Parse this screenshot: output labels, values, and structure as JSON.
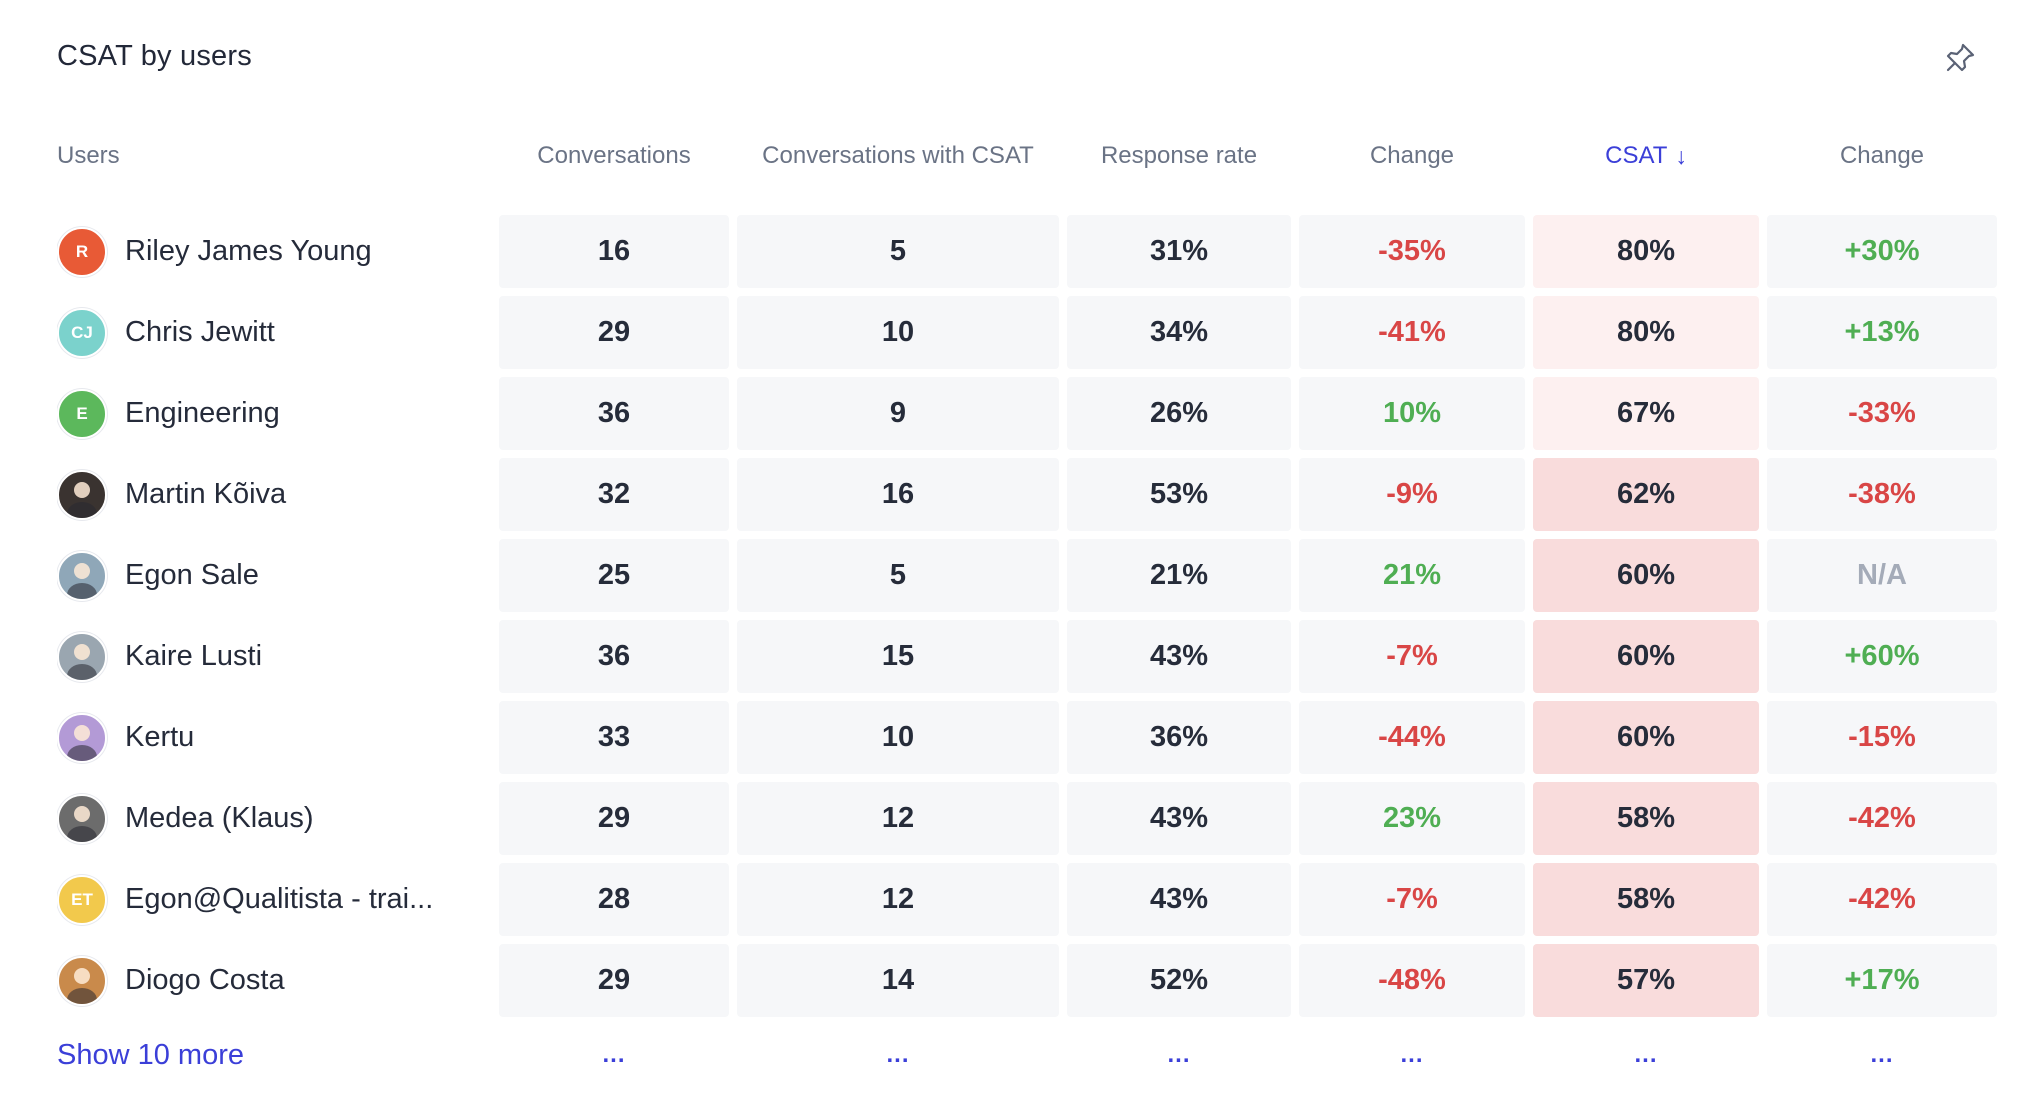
{
  "panel": {
    "title": "CSAT by users"
  },
  "icons": {
    "pin": "pin-icon",
    "sort": "arrow-down-icon"
  },
  "colors": {
    "accent": "#3b3fd8",
    "negative": "#d94646",
    "positive": "#4fae53",
    "neutral": "#a4abb8",
    "csat_light": "#fdf0f0",
    "csat_mid": "#f9dcdc"
  },
  "table": {
    "headers": {
      "users": "Users",
      "conversations": "Conversations",
      "conversations_csat": "Conversations with CSAT",
      "response_rate": "Response rate",
      "change1": "Change",
      "csat": "CSAT",
      "csat_arrow": "↓",
      "change2": "Change"
    },
    "rows": [
      {
        "name": "Riley James Young",
        "initials": "R",
        "avatar_color": "#e85a36",
        "conversations": "16",
        "with_csat": "5",
        "response_rate": "31%",
        "change1": "-35%",
        "csat": "80%",
        "change2": "+30%"
      },
      {
        "name": "Chris Jewitt",
        "initials": "CJ",
        "avatar_color": "#7bd2cc",
        "conversations": "29",
        "with_csat": "10",
        "response_rate": "34%",
        "change1": "-41%",
        "csat": "80%",
        "change2": "+13%"
      },
      {
        "name": "Engineering",
        "initials": "E",
        "avatar_color": "#5cb85c",
        "conversations": "36",
        "with_csat": "9",
        "response_rate": "26%",
        "change1": "10%",
        "csat": "67%",
        "change2": "-33%"
      },
      {
        "name": "Martin Kõiva",
        "initials": "",
        "avatar_color": "#3a3330",
        "conversations": "32",
        "with_csat": "16",
        "response_rate": "53%",
        "change1": "-9%",
        "csat": "62%",
        "change2": "-38%"
      },
      {
        "name": "Egon Sale",
        "initials": "",
        "avatar_color": "#8fa7b8",
        "conversations": "25",
        "with_csat": "5",
        "response_rate": "21%",
        "change1": "21%",
        "csat": "60%",
        "change2": "N/A"
      },
      {
        "name": "Kaire Lusti",
        "initials": "",
        "avatar_color": "#9aa6b0",
        "conversations": "36",
        "with_csat": "15",
        "response_rate": "43%",
        "change1": "-7%",
        "csat": "60%",
        "change2": "+60%"
      },
      {
        "name": "Kertu",
        "initials": "",
        "avatar_color": "#b39ad6",
        "conversations": "33",
        "with_csat": "10",
        "response_rate": "36%",
        "change1": "-44%",
        "csat": "60%",
        "change2": "-15%"
      },
      {
        "name": "Medea (Klaus)",
        "initials": "",
        "avatar_color": "#6c6c6c",
        "conversations": "29",
        "with_csat": "12",
        "response_rate": "43%",
        "change1": "23%",
        "csat": "58%",
        "change2": "-42%"
      },
      {
        "name": "Egon@Qualitista - trai...",
        "initials": "ET",
        "avatar_color": "#f2c94c",
        "conversations": "28",
        "with_csat": "12",
        "response_rate": "43%",
        "change1": "-7%",
        "csat": "58%",
        "change2": "-42%"
      },
      {
        "name": "Diogo Costa",
        "initials": "",
        "avatar_color": "#c98a4b",
        "conversations": "29",
        "with_csat": "14",
        "response_rate": "52%",
        "change1": "-48%",
        "csat": "57%",
        "change2": "+17%"
      }
    ],
    "show_more_label": "Show 10 more",
    "ellipsis": "..."
  }
}
